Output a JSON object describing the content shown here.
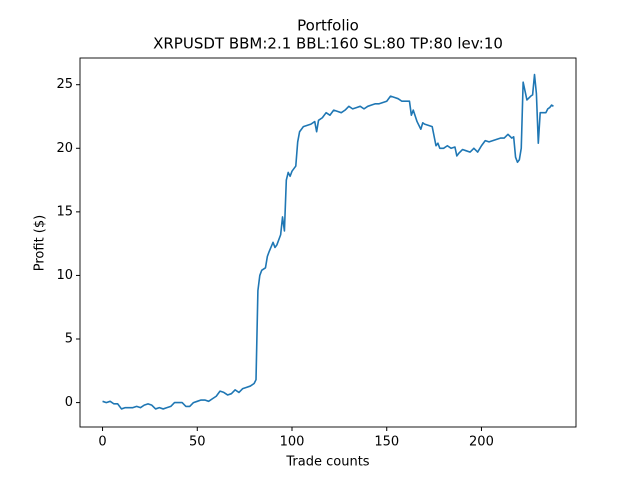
{
  "chart_data": {
    "type": "line",
    "title": "Portfolio",
    "subtitle": "XRPUSDT BBM:2.1 BBL:160 SL:80 TP:80 lev:10",
    "x_label": "Trade counts",
    "y_label": "Profit ($)",
    "color": "#1f77b4",
    "xlim": [
      -11.9,
      249.9
    ],
    "ylim": [
      -1.92,
      27.1
    ],
    "xticks": [
      0,
      50,
      100,
      150,
      200
    ],
    "yticks": [
      0,
      5,
      10,
      15,
      20,
      25
    ],
    "grid": false,
    "x": [
      0,
      2,
      4,
      6,
      8,
      10,
      12,
      14,
      16,
      18,
      20,
      22,
      24,
      26,
      28,
      30,
      32,
      34,
      36,
      38,
      40,
      42,
      44,
      46,
      48,
      50,
      52,
      54,
      56,
      58,
      60,
      62,
      64,
      66,
      68,
      70,
      72,
      74,
      76,
      78,
      80,
      81,
      82,
      83,
      84,
      86,
      87,
      88,
      90,
      91,
      92,
      94,
      95,
      96,
      97,
      98,
      99,
      100,
      102,
      103,
      104,
      106,
      108,
      110,
      112,
      113,
      114,
      116,
      118,
      120,
      122,
      124,
      126,
      128,
      130,
      132,
      134,
      136,
      138,
      140,
      142,
      144,
      146,
      148,
      150,
      152,
      154,
      156,
      158,
      160,
      162,
      163,
      164,
      166,
      168,
      169,
      170,
      172,
      174,
      176,
      177,
      178,
      180,
      182,
      184,
      186,
      187,
      188,
      190,
      192,
      194,
      196,
      198,
      200,
      202,
      204,
      206,
      208,
      210,
      212,
      214,
      216,
      217,
      218,
      219,
      220,
      221,
      222,
      223,
      224,
      226,
      227,
      228,
      229,
      230,
      231,
      232,
      234,
      235,
      236,
      237,
      238
    ],
    "values": [
      0.1,
      0.0,
      0.1,
      -0.1,
      -0.1,
      -0.5,
      -0.4,
      -0.4,
      -0.4,
      -0.3,
      -0.4,
      -0.2,
      -0.1,
      -0.2,
      -0.5,
      -0.4,
      -0.5,
      -0.4,
      -0.3,
      0.0,
      0.0,
      0.0,
      -0.3,
      -0.3,
      0.0,
      0.1,
      0.2,
      0.2,
      0.1,
      0.3,
      0.5,
      0.9,
      0.8,
      0.6,
      0.7,
      1.0,
      0.8,
      1.1,
      1.2,
      1.3,
      1.5,
      1.8,
      8.8,
      10.0,
      10.4,
      10.6,
      11.5,
      11.9,
      12.6,
      12.2,
      12.4,
      13.2,
      14.6,
      13.5,
      17.5,
      18.1,
      17.8,
      18.2,
      18.6,
      20.5,
      21.3,
      21.7,
      21.8,
      21.9,
      22.1,
      21.3,
      22.2,
      22.4,
      22.8,
      22.6,
      23.0,
      22.9,
      22.8,
      23.0,
      23.3,
      23.1,
      23.2,
      23.3,
      23.1,
      23.3,
      23.4,
      23.5,
      23.5,
      23.6,
      23.7,
      24.1,
      24.0,
      23.9,
      23.7,
      23.7,
      23.7,
      22.6,
      23.0,
      22.1,
      21.5,
      22.0,
      21.9,
      21.8,
      21.7,
      20.2,
      20.4,
      20.0,
      20.0,
      20.2,
      20.0,
      20.1,
      19.4,
      19.6,
      19.9,
      19.8,
      19.7,
      20.0,
      19.7,
      20.2,
      20.6,
      20.5,
      20.6,
      20.7,
      20.8,
      20.8,
      21.1,
      20.8,
      20.9,
      19.3,
      18.9,
      19.1,
      20.0,
      25.2,
      24.5,
      23.8,
      24.1,
      24.2,
      25.8,
      24.3,
      20.4,
      22.8,
      22.8,
      22.8,
      23.1,
      23.2,
      23.4,
      23.3
    ]
  }
}
